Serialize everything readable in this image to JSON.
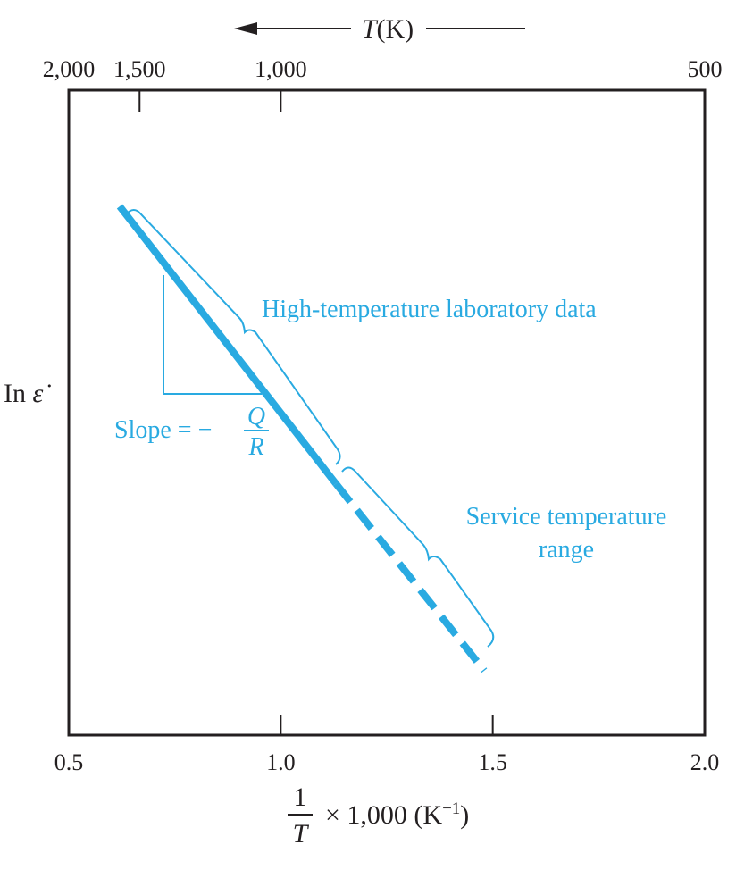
{
  "chart_data": {
    "type": "line",
    "x_axis": {
      "label_numerator": "1",
      "label_denominator": "T",
      "label_suffix": "× 1,000 (K",
      "label_exponent": "−1",
      "label_close": ")",
      "range": [
        0.5,
        2.0
      ],
      "ticks": [
        0.5,
        1.0,
        1.5,
        2.0
      ],
      "tick_labels": [
        "0.5",
        "1.0",
        "1.5",
        "2.0"
      ]
    },
    "top_axis": {
      "label_italic": "T",
      "label_rest": "(K)",
      "arrow": "left",
      "ticks": [
        {
          "x": 0.5,
          "label": "2,000"
        },
        {
          "x": 0.667,
          "label": "1,500"
        },
        {
          "x": 1.0,
          "label": "1,000"
        },
        {
          "x": 2.0,
          "label": "500"
        }
      ]
    },
    "y_axis": {
      "label_main": "In ",
      "label_symbol": "ε̇",
      "range": [
        0,
        10
      ]
    },
    "grid": false,
    "series": [
      {
        "style": "solid",
        "points": [
          [
            0.62,
            8.2
          ],
          [
            1.13,
            3.9
          ]
        ]
      },
      {
        "style": "dashed",
        "points": [
          [
            1.13,
            3.9
          ],
          [
            1.48,
            1.0
          ]
        ]
      }
    ],
    "annotations": {
      "high_temp": "High-temperature laboratory data",
      "service_line1": "Service temperature",
      "service_line2": "range",
      "slope_text": "Slope = −",
      "slope_num": "Q",
      "slope_den": "R"
    },
    "colors": {
      "series": "#29aae1",
      "axis": "#231f20"
    }
  }
}
